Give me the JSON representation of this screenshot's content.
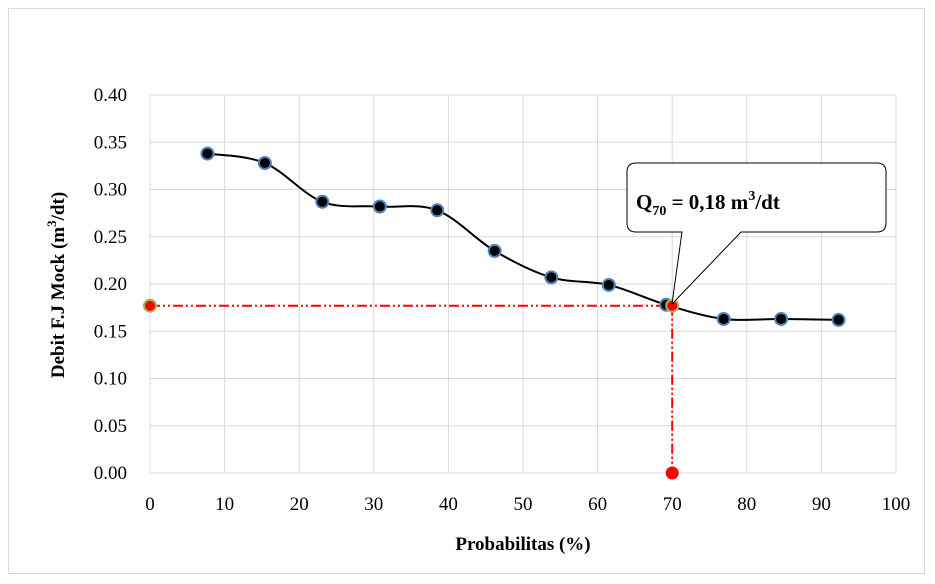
{
  "chart_data": {
    "type": "line",
    "xlabel": "Probabilitas (%)",
    "ylabel_main": "Debit F.J Mock (m",
    "ylabel_sup": "3",
    "ylabel_end": "/dt)",
    "xlim": [
      0,
      100
    ],
    "ylim": [
      0,
      0.4
    ],
    "x_ticks": [
      0,
      10,
      20,
      30,
      40,
      50,
      60,
      70,
      80,
      90,
      100
    ],
    "y_ticks": [
      "0.00",
      "0.05",
      "0.10",
      "0.15",
      "0.20",
      "0.25",
      "0.30",
      "0.35",
      "0.40"
    ],
    "grid": true,
    "series": [
      {
        "x": [
          7.7,
          15.4,
          23.1,
          30.8,
          38.5,
          46.2,
          53.8,
          61.5,
          69.2,
          76.9,
          84.6,
          92.3
        ],
        "y": [
          0.338,
          0.328,
          0.287,
          0.282,
          0.278,
          0.235,
          0.207,
          0.199,
          0.178,
          0.163,
          0.163,
          0.162
        ],
        "color": "#000000",
        "marker_fill": "#000000",
        "marker_edge": "#4f81bd"
      }
    ],
    "reference": {
      "x": 70,
      "y": 0.177,
      "color": "#ff0000",
      "marker_edge": "#9bbb59"
    },
    "annotation": {
      "q": "Q",
      "sub": "70",
      "text": " = 0,18 m",
      "sup": "3",
      "end": "/dt"
    }
  }
}
